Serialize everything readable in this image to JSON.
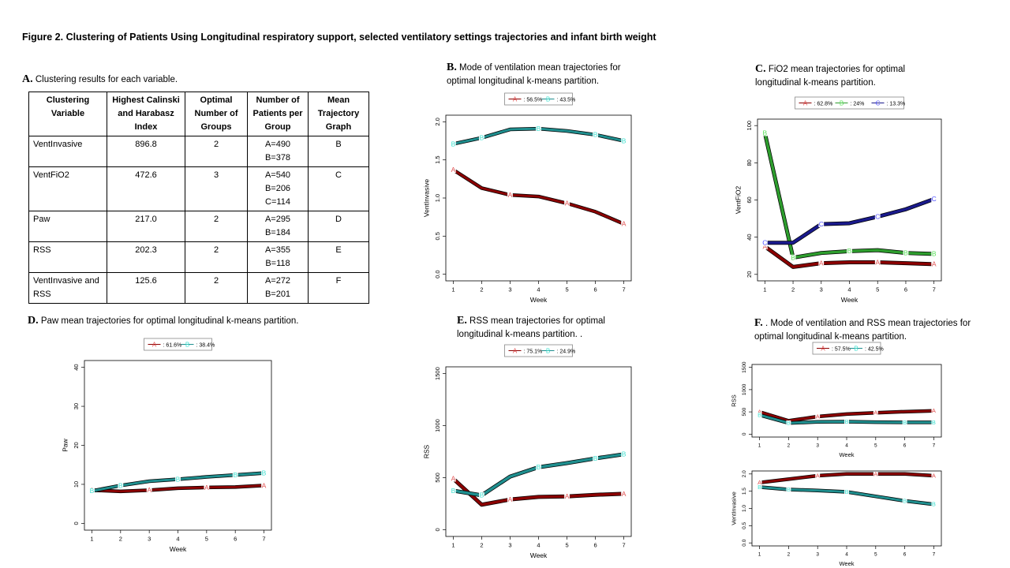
{
  "figure_title": "Figure 2. Clustering of Patients Using Longitudinal respiratory support, selected ventilatory settings trajectories and infant birth weight",
  "panels": {
    "A": {
      "letter": "A.",
      "caption": "Clustering results for each variable."
    },
    "B": {
      "letter": "B.",
      "caption": "Mode of ventilation mean trajectories for optimal longitudinal k-means partition."
    },
    "C": {
      "letter": "C.",
      "caption": "FiO2 mean trajectories for optimal longitudinal k-means partition."
    },
    "D": {
      "letter": "D.",
      "caption": "Paw mean trajectories for optimal longitudinal k-means partition."
    },
    "E": {
      "letter": "E.",
      "caption": "RSS mean trajectories for optimal longitudinal k-means partition. ."
    },
    "F": {
      "letter": "F.",
      "caption": ". Mode of ventilation and RSS mean trajectories for optimal longitudinal k-means partition."
    }
  },
  "table": {
    "headers": [
      "Clustering Variable",
      "Highest Calinski and Harabasz Index",
      "Optimal Number of Groups",
      "Number of Patients per Group",
      "Mean Trajectory Graph"
    ],
    "rows": [
      [
        "VentInvasive",
        "896.8",
        "2",
        "A=490\nB=378",
        "B"
      ],
      [
        "VentFiO2",
        "472.6",
        "3",
        "A=540\nB=206\nC=114",
        "C"
      ],
      [
        "Paw",
        "217.0",
        "2",
        "A=295\nB=184",
        "D"
      ],
      [
        "RSS",
        "202.3",
        "2",
        "A=355\nB=118",
        "E"
      ],
      [
        "VentInvasive and RSS",
        "125.6",
        "2",
        "A=272\nB=201",
        "F"
      ]
    ]
  },
  "colors": {
    "A": "#8b0000",
    "B_teal": "#1f8f8f",
    "B_green": "#2e9e2e",
    "C": "#1a1a8c",
    "A_marker": "#e05050",
    "B_teal_marker": "#40e0d0",
    "B_green_marker": "#5ae05a",
    "C_marker": "#5050ff"
  },
  "chart_data": [
    {
      "id": "B",
      "type": "line",
      "xlabel": "Week",
      "ylabel": "VentInvasive",
      "x": [
        1,
        2,
        3,
        4,
        5,
        6,
        7
      ],
      "ylim": [
        0,
        2.0
      ],
      "yticks": [
        "0.0",
        "0.5",
        "1.0",
        "1.5",
        "2.0"
      ],
      "series": [
        {
          "letter": "A",
          "legend": ": 56.5%",
          "values": [
            1.37,
            1.13,
            1.04,
            1.02,
            0.93,
            0.82,
            0.66
          ]
        },
        {
          "letter": "B",
          "legend": ": 43.5%",
          "values": [
            1.71,
            1.79,
            1.9,
            1.91,
            1.88,
            1.83,
            1.75
          ]
        }
      ]
    },
    {
      "id": "C",
      "type": "line",
      "xlabel": "Week",
      "ylabel": "VentFiO2",
      "x": [
        1,
        2,
        3,
        4,
        5,
        6,
        7
      ],
      "ylim": [
        20,
        100
      ],
      "yticks": [
        "20",
        "40",
        "60",
        "80",
        "100"
      ],
      "series": [
        {
          "letter": "A",
          "legend": ": 62.8%",
          "values": [
            35,
            24,
            26,
            26.5,
            26.5,
            26,
            25.5
          ]
        },
        {
          "letter": "B",
          "legend": ": 24%",
          "values": [
            96,
            29,
            31.5,
            32.5,
            33,
            31.5,
            31
          ]
        },
        {
          "letter": "C",
          "legend": ": 13.3%",
          "values": [
            37,
            37,
            47,
            47.5,
            51,
            55,
            60.5
          ]
        }
      ]
    },
    {
      "id": "D",
      "type": "line",
      "xlabel": "Week",
      "ylabel": "Paw",
      "x": [
        1,
        2,
        3,
        4,
        5,
        6,
        7
      ],
      "ylim": [
        0,
        40
      ],
      "yticks": [
        "0",
        "10",
        "20",
        "30",
        "40"
      ],
      "series": [
        {
          "letter": "A",
          "legend": ": 61.6%",
          "values": [
            8.5,
            8.2,
            8.5,
            9.0,
            9.2,
            9.3,
            9.7
          ]
        },
        {
          "letter": "B",
          "legend": ": 38.4%",
          "values": [
            8.3,
            9.7,
            10.8,
            11.3,
            11.9,
            12.4,
            12.9
          ]
        }
      ]
    },
    {
      "id": "E",
      "type": "line",
      "xlabel": "Week",
      "ylabel": "RSS",
      "x": [
        1,
        2,
        3,
        4,
        5,
        6,
        7
      ],
      "ylim": [
        0,
        1500
      ],
      "yticks": [
        "0",
        "500",
        "1000",
        "1500"
      ],
      "series": [
        {
          "letter": "A",
          "legend": ": 75.1%",
          "values": [
            490,
            240,
            290,
            315,
            320,
            335,
            345
          ]
        },
        {
          "letter": "B",
          "legend": ": 24.9%",
          "values": [
            375,
            330,
            510,
            600,
            640,
            685,
            725
          ]
        }
      ]
    },
    {
      "id": "F_top",
      "type": "line",
      "xlabel": "Week",
      "ylabel": "RSS",
      "x": [
        1,
        2,
        3,
        4,
        5,
        6,
        7
      ],
      "ylim": [
        0,
        1500
      ],
      "yticks": [
        "0",
        "500",
        "1000",
        "1500"
      ],
      "series": [
        {
          "letter": "A",
          "legend": ": 57.5%",
          "values": [
            500,
            300,
            395,
            450,
            480,
            505,
            525
          ]
        },
        {
          "letter": "B",
          "legend": ": 42.5%",
          "values": [
            430,
            250,
            275,
            280,
            270,
            265,
            265
          ]
        }
      ]
    },
    {
      "id": "F_bottom",
      "type": "line",
      "xlabel": "Week",
      "ylabel": "VentInvasive",
      "x": [
        1,
        2,
        3,
        4,
        5,
        6,
        7
      ],
      "ylim": [
        0,
        2.0
      ],
      "yticks": [
        "0.0",
        "0.5",
        "1.0",
        "1.5",
        "2.0"
      ],
      "series": [
        {
          "letter": "A",
          "values": [
            1.75,
            1.85,
            1.95,
            2.0,
            2.0,
            2.0,
            1.95
          ]
        },
        {
          "letter": "B",
          "values": [
            1.62,
            1.55,
            1.52,
            1.48,
            1.35,
            1.22,
            1.12
          ]
        }
      ]
    }
  ]
}
